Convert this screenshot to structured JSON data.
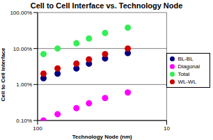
{
  "chart_data": {
    "type": "scatter",
    "title": "Cell to Cell Interface vs. Technology Node",
    "x_label": "Technology Node (nm)",
    "y_label": "Cell to Cell Interface",
    "x": [
      90,
      70,
      50,
      40,
      30,
      20
    ],
    "series": [
      {
        "name": "BL-BL",
        "color": "#000080",
        "values": [
          1.5,
          2.0,
          2.8,
          3.8,
          5.3,
          7.5
        ]
      },
      {
        "name": "WL-WL",
        "color": "#cc0000",
        "values": [
          2.0,
          2.8,
          3.8,
          5.0,
          7.0,
          10.0
        ]
      },
      {
        "name": "Diagonal",
        "color": "#ff00ff",
        "values": [
          0.1,
          0.15,
          0.22,
          0.3,
          0.42,
          0.6
        ]
      },
      {
        "name": "Total",
        "color": "#33ee55",
        "values": [
          7.0,
          10.0,
          14.0,
          19.0,
          27.0,
          38.0
        ]
      }
    ],
    "xlim": [
      100,
      10
    ],
    "xticks": [
      100,
      10
    ],
    "ylim": [
      0.1,
      100
    ],
    "yticks": [
      {
        "value": 0.1,
        "label": "0.10%"
      },
      {
        "value": 1,
        "label": "1.00%"
      },
      {
        "value": 10,
        "label": "10.00%"
      },
      {
        "value": 100,
        "label": "100.00%"
      }
    ],
    "log": true,
    "grid": true,
    "legend": "right",
    "marker": "circle"
  }
}
